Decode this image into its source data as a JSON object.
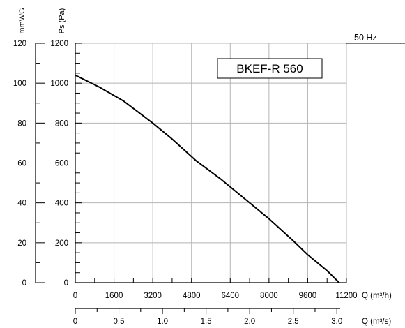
{
  "chart_data": {
    "type": "line",
    "title": "BKEF-R 560",
    "frequency_label": "50 Hz",
    "x_axis_flow_m3h": {
      "label": "Q (m³/h)",
      "range": [
        0,
        11200
      ],
      "tick_labels": [
        "0",
        "1600",
        "3200",
        "4800",
        "6400",
        "8000",
        "9600",
        "11200"
      ]
    },
    "x_axis_flow_m3s": {
      "label": "Q (m³/s)",
      "range": [
        0,
        3.11
      ],
      "tick_labels": [
        "0",
        "0.5",
        "1.0",
        "1.5",
        "2.0",
        "2.5",
        "3.0"
      ],
      "tick_values": [
        0,
        0.5,
        1.0,
        1.5,
        2.0,
        2.5,
        3.0
      ]
    },
    "y_axis_pa": {
      "label": "Ps (Pa)",
      "range": [
        0,
        1200
      ],
      "tick_labels": [
        "0",
        "200",
        "400",
        "600",
        "800",
        "1000",
        "1200"
      ]
    },
    "y_axis_mmwg": {
      "label": "mmWG",
      "range": [
        0,
        120
      ],
      "tick_labels": [
        "0",
        "20",
        "40",
        "60",
        "80",
        "100",
        "120"
      ]
    },
    "grid": true,
    "series": [
      {
        "x": [
          0,
          1000,
          2000,
          3200,
          4000,
          5000,
          6000,
          7000,
          8000,
          9000,
          9600,
          10400,
          10900
        ],
        "y": [
          1040,
          980,
          910,
          800,
          720,
          610,
          520,
          420,
          320,
          210,
          140,
          60,
          0
        ]
      }
    ]
  }
}
